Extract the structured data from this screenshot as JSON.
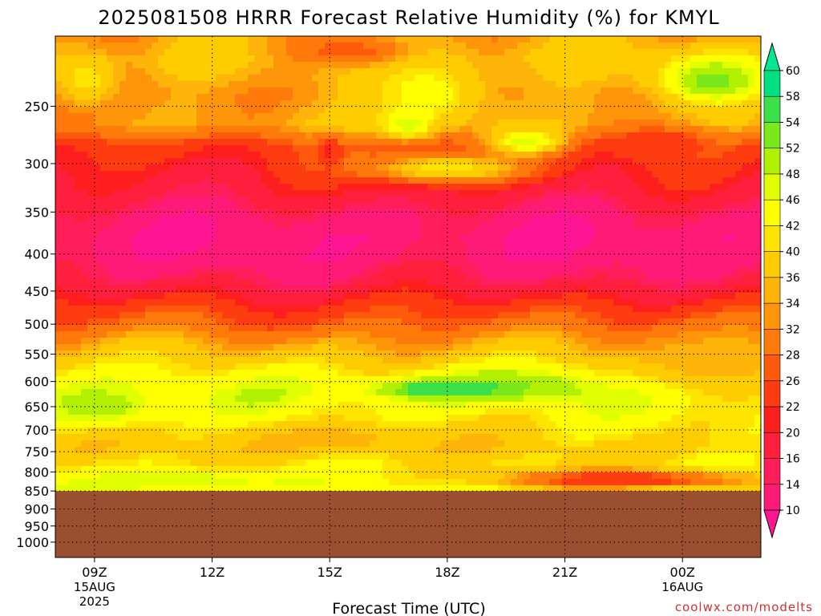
{
  "chart_data": {
    "type": "heatmap",
    "title": "2025081508 HRRR Forecast Relative Humidity (%) for KMYL",
    "xlabel": "Forecast Time (UTC)",
    "ylabel": "",
    "credit": "coolwx.com/modelts",
    "x_ticks": [
      {
        "label": "09Z",
        "hour": 9,
        "date1": "15AUG",
        "date2": "2025"
      },
      {
        "label": "12Z",
        "hour": 12,
        "date1": "",
        "date2": ""
      },
      {
        "label": "15Z",
        "hour": 15,
        "date1": "",
        "date2": ""
      },
      {
        "label": "18Z",
        "hour": 18,
        "date1": "",
        "date2": ""
      },
      {
        "label": "21Z",
        "hour": 21,
        "date1": "",
        "date2": ""
      },
      {
        "label": "00Z",
        "hour": 24,
        "date1": "16AUG",
        "date2": ""
      }
    ],
    "xlim": [
      8,
      26
    ],
    "y_scale": "log",
    "ylim_hpa": [
      1050,
      200
    ],
    "y_ticks": [
      250,
      300,
      350,
      400,
      450,
      500,
      550,
      600,
      650,
      700,
      750,
      800,
      850,
      900,
      950,
      1000
    ],
    "terrain_below_hpa": 850,
    "terrain_color": "#9a5030",
    "grid": true,
    "colorbar": {
      "levels": [
        10,
        14,
        16,
        20,
        22,
        26,
        28,
        32,
        34,
        36,
        40,
        42,
        46,
        48,
        52,
        54,
        58,
        60
      ],
      "colors": [
        "#ff1493",
        "#ff1a78",
        "#ff1e5a",
        "#ff1e3c",
        "#ff1e1e",
        "#ff3c10",
        "#ff5a0c",
        "#ff7a0a",
        "#ff960a",
        "#ffb40a",
        "#ffcc00",
        "#ffe400",
        "#ffff00",
        "#e0ff00",
        "#b0f000",
        "#7ae81a",
        "#3ae04a",
        "#00e080",
        "#00e890"
      ],
      "labels": [
        "60",
        "58",
        "54",
        "52",
        "48",
        "46",
        "42",
        "40",
        "36",
        "34",
        "32",
        "28",
        "26",
        "22",
        "20",
        "16",
        "14",
        "10"
      ]
    },
    "bands": [
      {
        "p": 200,
        "rh": 34
      },
      {
        "p": 215,
        "rh": 36
      },
      {
        "p": 240,
        "rh": 32
      },
      {
        "p": 265,
        "rh": 34
      },
      {
        "p": 285,
        "rh": 24
      },
      {
        "p": 305,
        "rh": 21
      },
      {
        "p": 330,
        "rh": 18
      },
      {
        "p": 355,
        "rh": 13
      },
      {
        "p": 380,
        "rh": 11
      },
      {
        "p": 405,
        "rh": 12
      },
      {
        "p": 430,
        "rh": 15
      },
      {
        "p": 455,
        "rh": 20
      },
      {
        "p": 475,
        "rh": 24
      },
      {
        "p": 500,
        "rh": 28
      },
      {
        "p": 525,
        "rh": 33
      },
      {
        "p": 550,
        "rh": 37
      },
      {
        "p": 575,
        "rh": 41
      },
      {
        "p": 600,
        "rh": 44
      },
      {
        "p": 625,
        "rh": 45
      },
      {
        "p": 650,
        "rh": 44
      },
      {
        "p": 680,
        "rh": 42
      },
      {
        "p": 710,
        "rh": 40
      },
      {
        "p": 740,
        "rh": 38
      },
      {
        "p": 770,
        "rh": 40
      },
      {
        "p": 800,
        "rh": 42
      },
      {
        "p": 830,
        "rh": 44
      },
      {
        "p": 850,
        "rh": 44
      }
    ],
    "features": [
      {
        "t": 17.5,
        "p": 240,
        "rh": 44,
        "rt": 1.6,
        "rp": 30
      },
      {
        "t": 17.0,
        "p": 265,
        "rh": 48,
        "rt": 0.6,
        "rp": 12
      },
      {
        "t": 20.0,
        "p": 280,
        "rh": 48,
        "rt": 1.0,
        "rp": 12
      },
      {
        "t": 24.8,
        "p": 230,
        "rh": 54,
        "rt": 1.4,
        "rp": 18
      },
      {
        "t": 23.5,
        "p": 280,
        "rh": 24,
        "rt": 1.3,
        "rp": 14
      },
      {
        "t": 8.8,
        "p": 230,
        "rh": 42,
        "rt": 0.8,
        "rp": 20
      },
      {
        "t": 15.5,
        "p": 210,
        "rh": 26,
        "rt": 1.5,
        "rp": 10
      },
      {
        "t": 15.0,
        "p": 290,
        "rh": 20,
        "rt": 0.3,
        "rp": 14
      },
      {
        "t": 18.0,
        "p": 305,
        "rh": 42,
        "rt": 2.2,
        "rp": 14
      },
      {
        "t": 19.5,
        "p": 610,
        "rh": 52,
        "rt": 2.5,
        "rp": 30
      },
      {
        "t": 17.8,
        "p": 615,
        "rh": 58,
        "rt": 1.6,
        "rp": 16
      },
      {
        "t": 9.2,
        "p": 650,
        "rh": 50,
        "rt": 1.5,
        "rp": 40
      },
      {
        "t": 15.0,
        "p": 720,
        "rh": 34,
        "rt": 2.5,
        "rp": 35
      },
      {
        "t": 24.5,
        "p": 560,
        "rh": 34,
        "rt": 2.0,
        "rp": 60
      },
      {
        "t": 22.5,
        "p": 820,
        "rh": 22,
        "rt": 3.5,
        "rp": 25
      },
      {
        "t": 11.5,
        "p": 820,
        "rh": 48,
        "rt": 2.5,
        "rp": 25
      }
    ]
  }
}
